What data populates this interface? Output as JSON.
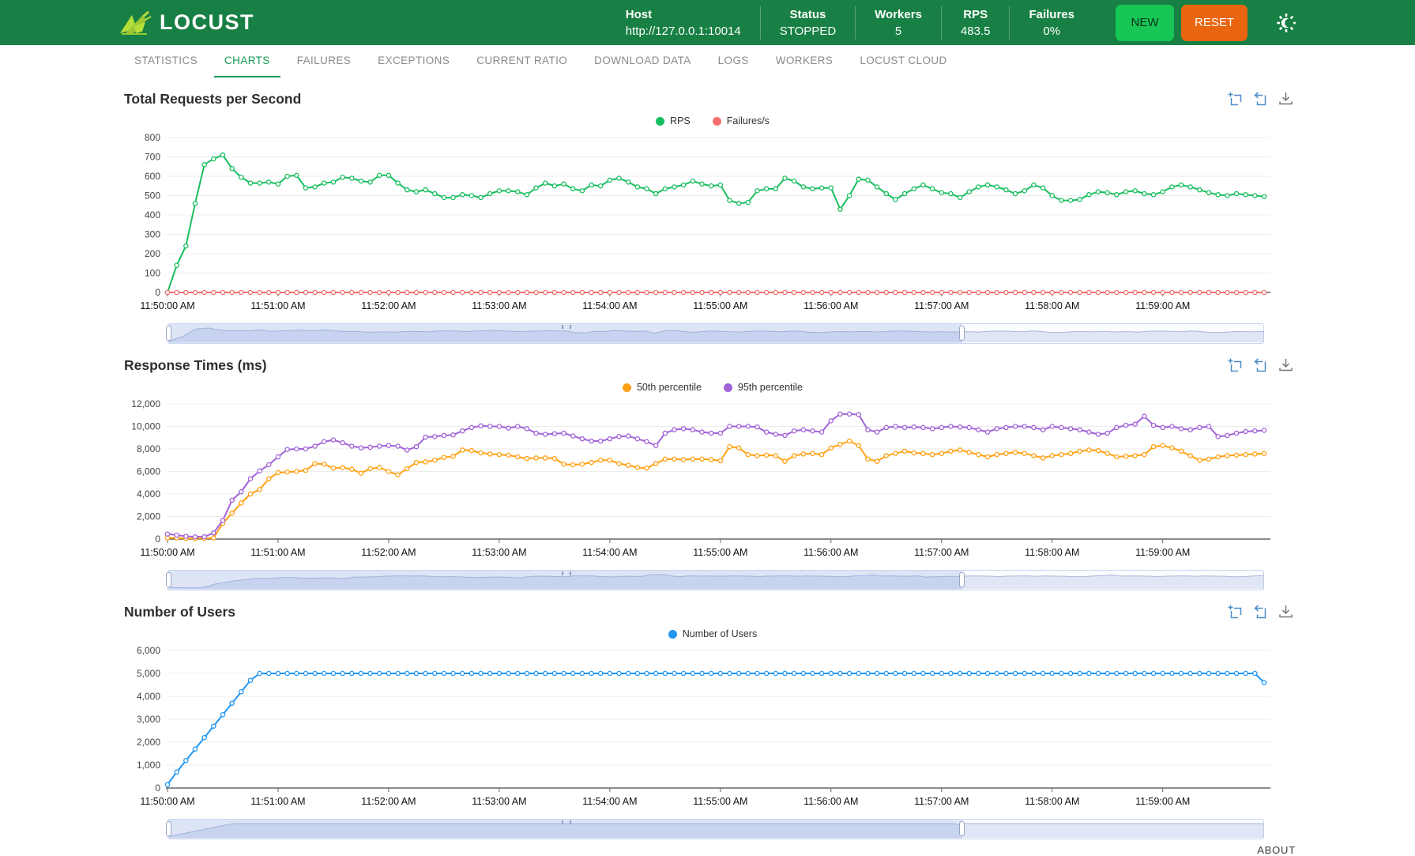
{
  "header": {
    "brand": "LOCUST",
    "stats": [
      {
        "label": "Host",
        "value": "http://127.0.0.1:10014"
      },
      {
        "label": "Status",
        "value": "STOPPED"
      },
      {
        "label": "Workers",
        "value": "5"
      },
      {
        "label": "RPS",
        "value": "483.5"
      },
      {
        "label": "Failures",
        "value": "0%"
      }
    ],
    "buttons": {
      "new": "NEW",
      "reset": "RESET"
    },
    "colors": {
      "header_bg": "#188044",
      "new_bg": "#17c654",
      "reset_bg": "#e9650f",
      "logo_green": "#b4de3a"
    }
  },
  "tabs": {
    "items": [
      "STATISTICS",
      "CHARTS",
      "FAILURES",
      "EXCEPTIONS",
      "CURRENT RATIO",
      "DOWNLOAD DATA",
      "LOGS",
      "WORKERS",
      "LOCUST CLOUD"
    ],
    "active": "CHARTS",
    "active_color": "#149a52"
  },
  "footer": {
    "about": "ABOUT"
  },
  "chart_data": [
    {
      "type": "line",
      "title": "Total Requests per Second",
      "legend": [
        {
          "name": "RPS",
          "color": "#19be5f"
        },
        {
          "name": "Failures/s",
          "color": "#f37070"
        }
      ],
      "toolbox": [
        "zoom",
        "restore",
        "download"
      ],
      "x_tick_labels": [
        "11:50:00 AM",
        "11:51:00 AM",
        "11:52:00 AM",
        "11:53:00 AM",
        "11:54:00 AM",
        "11:55:00 AM",
        "11:56:00 AM",
        "11:57:00 AM",
        "11:58:00 AM",
        "11:59:00 AM"
      ],
      "x_seconds_range": [
        0,
        595
      ],
      "point_interval_seconds": 5,
      "ylim": [
        0,
        800
      ],
      "ytick_step": 100,
      "grid": true,
      "legend_position": "top-center",
      "series": [
        {
          "name": "RPS",
          "color": "#19be5f",
          "values": [
            0,
            140,
            240,
            460,
            660,
            690,
            710,
            640,
            595,
            565,
            565,
            570,
            560,
            600,
            605,
            540,
            545,
            565,
            570,
            595,
            590,
            575,
            570,
            605,
            605,
            565,
            530,
            520,
            530,
            510,
            490,
            490,
            505,
            500,
            490,
            510,
            525,
            525,
            520,
            505,
            540,
            565,
            550,
            560,
            535,
            525,
            555,
            550,
            580,
            590,
            570,
            545,
            535,
            510,
            535,
            545,
            555,
            575,
            560,
            550,
            555,
            475,
            460,
            465,
            525,
            535,
            535,
            590,
            575,
            545,
            535,
            540,
            540,
            430,
            500,
            585,
            580,
            545,
            510,
            480,
            510,
            535,
            555,
            535,
            515,
            510,
            490,
            520,
            545,
            555,
            545,
            530,
            510,
            525,
            555,
            540,
            500,
            475,
            475,
            480,
            505,
            520,
            515,
            505,
            520,
            525,
            510,
            505,
            520,
            545,
            555,
            545,
            530,
            515,
            505,
            500,
            510,
            505,
            500,
            495
          ]
        },
        {
          "name": "Failures/s",
          "color": "#f37070",
          "values": [
            0,
            0,
            0,
            0,
            0,
            0,
            0,
            0,
            0,
            0,
            0,
            0,
            0,
            0,
            0,
            0,
            0,
            0,
            0,
            0,
            0,
            0,
            0,
            0,
            0,
            0,
            0,
            0,
            0,
            0,
            0,
            0,
            0,
            0,
            0,
            0,
            0,
            0,
            0,
            0,
            0,
            0,
            0,
            0,
            0,
            0,
            0,
            0,
            0,
            0,
            0,
            0,
            0,
            0,
            0,
            0,
            0,
            0,
            0,
            0,
            0,
            0,
            0,
            0,
            0,
            0,
            0,
            0,
            0,
            0,
            0,
            0,
            0,
            0,
            0,
            0,
            0,
            0,
            0,
            0,
            0,
            0,
            0,
            0,
            0,
            0,
            0,
            0,
            0,
            0,
            0,
            0,
            0,
            0,
            0,
            0,
            0,
            0,
            0,
            0,
            0,
            0,
            0,
            0,
            0,
            0,
            0,
            0,
            0,
            0,
            0,
            0,
            0,
            0,
            0,
            0,
            0,
            0,
            0,
            0
          ]
        }
      ],
      "slider": {
        "start": 0,
        "end": 0.725
      }
    },
    {
      "type": "line",
      "title": "Response Times (ms)",
      "legend": [
        {
          "name": "50th percentile",
          "color": "#ffa115"
        },
        {
          "name": "95th percentile",
          "color": "#a163d7"
        }
      ],
      "toolbox": [
        "zoom",
        "restore",
        "download"
      ],
      "x_tick_labels": [
        "11:50:00 AM",
        "11:51:00 AM",
        "11:52:00 AM",
        "11:53:00 AM",
        "11:54:00 AM",
        "11:55:00 AM",
        "11:56:00 AM",
        "11:57:00 AM",
        "11:58:00 AM",
        "11:59:00 AM"
      ],
      "x_seconds_range": [
        0,
        595
      ],
      "point_interval_seconds": 5,
      "ylim": [
        0,
        12000
      ],
      "ytick_step": 2000,
      "grid": true,
      "legend_position": "top-center",
      "series": [
        {
          "name": "50th percentile",
          "color": "#ffa115",
          "values": [
            100,
            100,
            50,
            50,
            50,
            100,
            1400,
            2300,
            3200,
            4000,
            4400,
            5350,
            5900,
            5950,
            6000,
            6100,
            6700,
            6650,
            6300,
            6350,
            6200,
            5850,
            6250,
            6350,
            6000,
            5700,
            6250,
            6800,
            6850,
            7000,
            7250,
            7350,
            7900,
            7850,
            7650,
            7550,
            7500,
            7450,
            7300,
            7150,
            7200,
            7200,
            7150,
            6650,
            6600,
            6650,
            6800,
            7000,
            7000,
            6700,
            6550,
            6350,
            6300,
            6700,
            7100,
            7100,
            7050,
            7100,
            7100,
            7050,
            6950,
            8200,
            8100,
            7500,
            7400,
            7450,
            7400,
            6900,
            7400,
            7550,
            7600,
            7500,
            8100,
            8400,
            8700,
            8300,
            7100,
            6900,
            7400,
            7600,
            7800,
            7650,
            7600,
            7500,
            7600,
            7800,
            7900,
            7700,
            7500,
            7300,
            7500,
            7600,
            7700,
            7600,
            7400,
            7200,
            7400,
            7500,
            7600,
            7800,
            7900,
            7850,
            7600,
            7300,
            7350,
            7400,
            7500,
            8200,
            8300,
            8100,
            7800,
            7400,
            7000,
            7100,
            7300,
            7400,
            7450,
            7500,
            7550,
            7600
          ]
        },
        {
          "name": "95th percentile",
          "color": "#a163d7",
          "values": [
            450,
            350,
            250,
            200,
            200,
            550,
            1650,
            3450,
            4200,
            5350,
            6050,
            6600,
            7300,
            7950,
            8000,
            8000,
            8250,
            8650,
            8800,
            8550,
            8250,
            8100,
            8150,
            8250,
            8300,
            8250,
            7900,
            8200,
            9050,
            9100,
            9200,
            9250,
            9600,
            9900,
            10050,
            10000,
            10000,
            9850,
            10000,
            9800,
            9400,
            9300,
            9350,
            9400,
            9150,
            8900,
            8700,
            8700,
            8900,
            9100,
            9150,
            8900,
            8650,
            8300,
            9400,
            9700,
            9800,
            9700,
            9500,
            9400,
            9400,
            10000,
            10000,
            10000,
            9950,
            9500,
            9300,
            9200,
            9600,
            9700,
            9600,
            9500,
            10500,
            11100,
            11100,
            11050,
            9700,
            9500,
            9900,
            10000,
            9900,
            9950,
            9900,
            9800,
            9900,
            10000,
            9950,
            9900,
            9700,
            9500,
            9800,
            9900,
            10000,
            10000,
            9900,
            9700,
            10000,
            9900,
            9800,
            9700,
            9500,
            9300,
            9400,
            9900,
            10100,
            10200,
            10900,
            10100,
            9900,
            10000,
            9800,
            9700,
            9900,
            10000,
            9100,
            9200,
            9400,
            9550,
            9600,
            9650
          ]
        }
      ],
      "slider": {
        "start": 0,
        "end": 0.725
      }
    },
    {
      "type": "line",
      "title": "Number of Users",
      "legend": [
        {
          "name": "Number of Users",
          "color": "#2196f3"
        }
      ],
      "toolbox": [
        "zoom",
        "restore",
        "download"
      ],
      "x_tick_labels": [
        "11:50:00 AM",
        "11:51:00 AM",
        "11:52:00 AM",
        "11:53:00 AM",
        "11:54:00 AM",
        "11:55:00 AM",
        "11:56:00 AM",
        "11:57:00 AM",
        "11:58:00 AM",
        "11:59:00 AM"
      ],
      "x_seconds_range": [
        0,
        595
      ],
      "point_interval_seconds": 5,
      "ylim": [
        0,
        6000
      ],
      "ytick_step": 1000,
      "grid": true,
      "legend_position": "top-center",
      "series": [
        {
          "name": "Number of Users",
          "color": "#2196f3",
          "values": [
            150,
            700,
            1200,
            1700,
            2200,
            2700,
            3200,
            3700,
            4200,
            4700,
            5000,
            5000,
            5000,
            5000,
            5000,
            5000,
            5000,
            5000,
            5000,
            5000,
            5000,
            5000,
            5000,
            5000,
            5000,
            5000,
            5000,
            5000,
            5000,
            5000,
            5000,
            5000,
            5000,
            5000,
            5000,
            5000,
            5000,
            5000,
            5000,
            5000,
            5000,
            5000,
            5000,
            5000,
            5000,
            5000,
            5000,
            5000,
            5000,
            5000,
            5000,
            5000,
            5000,
            5000,
            5000,
            5000,
            5000,
            5000,
            5000,
            5000,
            5000,
            5000,
            5000,
            5000,
            5000,
            5000,
            5000,
            5000,
            5000,
            5000,
            5000,
            5000,
            5000,
            5000,
            5000,
            5000,
            5000,
            5000,
            5000,
            5000,
            5000,
            5000,
            5000,
            5000,
            5000,
            5000,
            5000,
            5000,
            5000,
            5000,
            5000,
            5000,
            5000,
            5000,
            5000,
            5000,
            5000,
            5000,
            5000,
            5000,
            5000,
            5000,
            5000,
            5000,
            5000,
            5000,
            5000,
            5000,
            5000,
            5000,
            5000,
            5000,
            5000,
            5000,
            5000,
            5000,
            5000,
            5000,
            5000,
            4600
          ]
        }
      ],
      "slider": {
        "start": 0,
        "end": 0.725
      }
    }
  ]
}
